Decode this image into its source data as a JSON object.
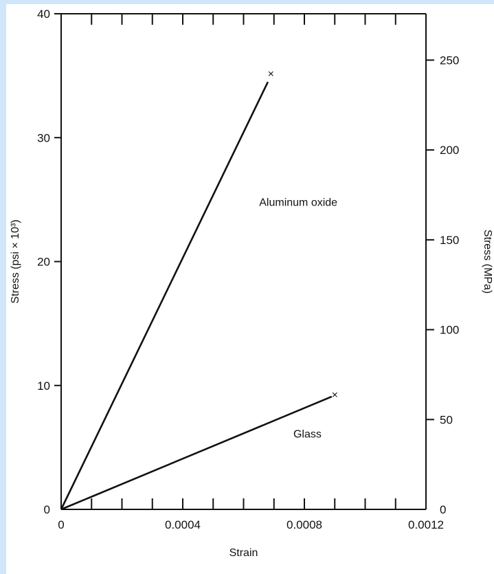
{
  "chart_data": {
    "type": "line",
    "xlabel": "Strain",
    "ylabel": "Stress (psi × 10³)",
    "ylabel_right": "Stress (MPa)",
    "xlim": [
      0,
      0.0012
    ],
    "ylim": [
      0,
      40
    ],
    "ylim_right": [
      0,
      275.8
    ],
    "grid": false,
    "legend": "none",
    "x_ticks": [
      {
        "value": 0,
        "label": "0"
      },
      {
        "value": 0.0004,
        "label": "0.0004"
      },
      {
        "value": 0.0008,
        "label": "0.0008"
      },
      {
        "value": 0.0012,
        "label": "0.0012"
      }
    ],
    "y_ticks": [
      {
        "value": 0,
        "label": "0"
      },
      {
        "value": 10,
        "label": "10"
      },
      {
        "value": 20,
        "label": "20"
      },
      {
        "value": 30,
        "label": "30"
      },
      {
        "value": 40,
        "label": "40"
      }
    ],
    "y_right_ticks": [
      {
        "value": 0,
        "label": "0"
      },
      {
        "value": 50,
        "label": "50"
      },
      {
        "value": 100,
        "label": "100"
      },
      {
        "value": 150,
        "label": "150"
      },
      {
        "value": 200,
        "label": "200"
      },
      {
        "value": 250,
        "label": "250"
      }
    ],
    "x_minor_step": 0.0001,
    "series": [
      {
        "name": "Aluminum oxide",
        "x": [
          0,
          0.00068
        ],
        "y": [
          0,
          34.5
        ],
        "end_marker": "×",
        "marker_at": [
          0.00069,
          35.2
        ]
      },
      {
        "name": "Glass",
        "x": [
          0,
          0.00089
        ],
        "y": [
          0,
          9.1
        ],
        "end_marker": "×",
        "marker_at": [
          0.0009,
          9.3
        ]
      }
    ],
    "annotations": [
      {
        "text": "Aluminum oxide",
        "x": 0.00078,
        "y": 24.5
      },
      {
        "text": "Glass",
        "x": 0.00081,
        "y": 5.8
      }
    ]
  }
}
